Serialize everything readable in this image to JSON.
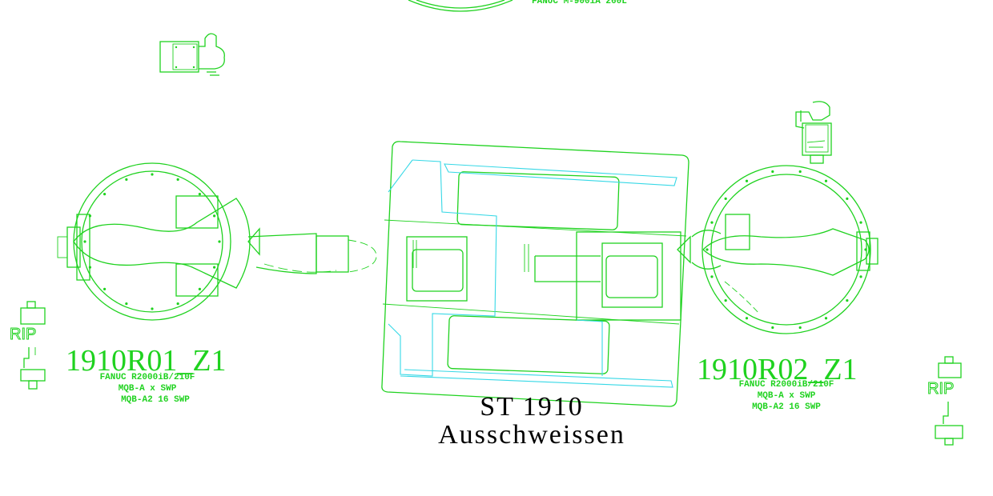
{
  "drawing": {
    "station_title": "ST 1910",
    "station_subtitle": "Ausschweissen",
    "top_label": "FANUC M-900iA 260L",
    "colors": {
      "primary_line": "#1fd21f",
      "secondary_line": "#36d8e6",
      "text": "#000000",
      "background": "#ffffff"
    }
  },
  "robots": [
    {
      "id": "1910R01_Z1",
      "model": "FANUC R2000iB/210F",
      "line2": "MQB-A x SWP",
      "line3": "MQB-A2 16 SWP"
    },
    {
      "id": "1910R02_Z1",
      "model": "FANUC R2000iB/210F",
      "line2": "MQB-A x SWP",
      "line3": "MQB-A2 16 SWP"
    }
  ],
  "grippers": [
    {
      "label": "RIP"
    },
    {
      "label": "RIP"
    }
  ]
}
